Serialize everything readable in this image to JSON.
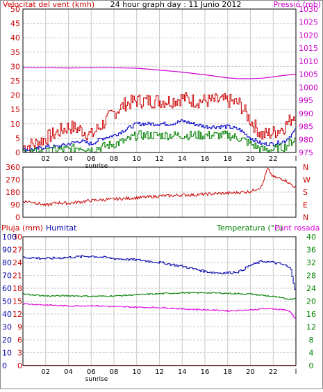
{
  "colors": {
    "background": "#ffffff",
    "grid": "#c8c8c8",
    "frame": "#000000",
    "wind": "#cc0000",
    "wind_avg": "#0000cc",
    "wind_min": "#008000",
    "pressure": "#cc00cc",
    "direction": "#cc0000",
    "rain": "#cc0000",
    "humidity": "#0000aa",
    "temperature": "#008000",
    "dewpoint": "#dd00dd",
    "title": "#000000"
  },
  "chart_data": [
    {
      "type": "line",
      "title": "24 hour graph day : 11 Junio 2012",
      "left_label": "Velocitat del vent (kmh)",
      "right_label": "Pressió (mb)",
      "x_ticks": [
        "02",
        "04",
        "06",
        "08",
        "10",
        "12",
        "14",
        "16",
        "18",
        "20",
        "22",
        "l"
      ],
      "sunrise_label": "sunrise",
      "sunrise_hour": 6.3,
      "xlim": [
        0,
        24
      ],
      "ylim_left": [
        0,
        50
      ],
      "yticks_left": [
        "0",
        "5",
        "10",
        "15",
        "20",
        "25",
        "30",
        "35",
        "40",
        "45",
        "50"
      ],
      "ylim_right": [
        975,
        1030
      ],
      "yticks_right": [
        "975",
        "980",
        "985",
        "990",
        "995",
        "1000",
        "1005",
        "1010",
        "1015",
        "1020",
        "1025",
        "1030"
      ],
      "series": [
        {
          "key": "wind_gust",
          "axis": "left",
          "hours": [
            0,
            1,
            2,
            3,
            4,
            5,
            6,
            7,
            8,
            9,
            10,
            11,
            12,
            13,
            14,
            15,
            16,
            17,
            18,
            19,
            20,
            21,
            22,
            23,
            24
          ],
          "values": [
            2,
            3,
            5,
            7,
            9,
            8,
            6,
            10,
            14,
            17,
            18,
            18,
            18,
            18,
            19,
            18,
            18,
            18,
            18,
            17,
            11,
            6,
            7,
            9,
            14
          ]
        },
        {
          "key": "wind_avg",
          "axis": "left",
          "hours": [
            0,
            1,
            2,
            3,
            4,
            5,
            6,
            7,
            8,
            9,
            10,
            11,
            12,
            13,
            14,
            15,
            16,
            17,
            18,
            19,
            20,
            21,
            22,
            23,
            24
          ],
          "values": [
            1,
            1,
            2,
            2,
            3,
            4,
            3,
            5,
            6,
            8,
            10,
            10,
            10,
            10,
            11,
            10,
            9,
            9,
            9,
            8,
            5,
            3,
            3,
            4,
            8
          ]
        },
        {
          "key": "wind_min",
          "axis": "left",
          "hours": [
            0,
            1,
            2,
            3,
            4,
            5,
            6,
            7,
            8,
            9,
            10,
            11,
            12,
            13,
            14,
            15,
            16,
            17,
            18,
            19,
            20,
            21,
            22,
            23,
            24
          ],
          "values": [
            0,
            0,
            0,
            1,
            1,
            2,
            1,
            2,
            3,
            4,
            6,
            6,
            6,
            6,
            6,
            6,
            6,
            6,
            6,
            5,
            3,
            1,
            1,
            2,
            5
          ]
        },
        {
          "key": "pressure",
          "axis": "right",
          "hours": [
            0,
            2,
            4,
            6,
            8,
            10,
            12,
            14,
            16,
            17,
            18,
            19,
            20,
            21,
            22,
            23,
            24
          ],
          "values": [
            1007.5,
            1007.5,
            1007.4,
            1007.5,
            1007.5,
            1007.3,
            1006.6,
            1005.8,
            1004.8,
            1004.2,
            1003.6,
            1003.3,
            1003.3,
            1003.5,
            1004.0,
            1004.6,
            1005.0
          ]
        }
      ]
    },
    {
      "type": "line",
      "left_ticks": [
        "0",
        "90",
        "180",
        "270",
        "360"
      ],
      "ylim": [
        0,
        360
      ],
      "compass": [
        "N",
        "W",
        "S",
        "E",
        "N"
      ],
      "series": [
        {
          "key": "direction",
          "hours": [
            0,
            1,
            2,
            3,
            4,
            5,
            6,
            7,
            8,
            9,
            10,
            11,
            12,
            13,
            14,
            15,
            16,
            17,
            18,
            19,
            20,
            21,
            21.5,
            22,
            23,
            24
          ],
          "values": [
            115,
            108,
            85,
            105,
            100,
            110,
            120,
            125,
            130,
            135,
            140,
            145,
            152,
            155,
            160,
            160,
            165,
            170,
            172,
            178,
            185,
            220,
            350,
            290,
            270,
            210
          ]
        }
      ]
    },
    {
      "type": "line",
      "left_label": "Pluja (mm)",
      "left2_label": "Humitat",
      "right_label": "Temperatura (°C)",
      "right2_label": "Punt rosada",
      "x_ticks": [
        "02",
        "04",
        "06",
        "08",
        "10",
        "12",
        "14",
        "16",
        "18",
        "20",
        "22",
        "l"
      ],
      "sunrise_label": "sunrise",
      "sunrise_hour": 6.3,
      "xlim": [
        0,
        24
      ],
      "ylim_rain": [
        0,
        30
      ],
      "yticks_rain": [
        "0",
        "3",
        "6",
        "9",
        "12",
        "15",
        "18",
        "21",
        "24",
        "27",
        "30"
      ],
      "ylim_humidity": [
        0,
        100
      ],
      "yticks_humidity": [
        "0",
        "10",
        "20",
        "30",
        "40",
        "50",
        "60",
        "70",
        "80",
        "90",
        "100"
      ],
      "ylim_right": [
        0,
        40
      ],
      "yticks_right": [
        "0",
        "4",
        "8",
        "12",
        "16",
        "20",
        "24",
        "28",
        "32",
        "36",
        "40"
      ],
      "series": [
        {
          "key": "rain",
          "axis": "rain",
          "hours": [
            0,
            24
          ],
          "values": [
            0,
            0
          ]
        },
        {
          "key": "humidity",
          "axis": "humidity",
          "hours": [
            0,
            2,
            4,
            6,
            8,
            10,
            12,
            14,
            16,
            17,
            18,
            19,
            20,
            21,
            22,
            23,
            23.5,
            24
          ],
          "values": [
            84,
            83,
            84,
            85,
            83,
            82,
            80,
            77,
            73,
            72,
            72,
            73,
            78,
            81,
            80,
            78,
            75,
            55
          ]
        },
        {
          "key": "temperature",
          "axis": "right",
          "hours": [
            0,
            2,
            4,
            6,
            8,
            10,
            12,
            14,
            16,
            18,
            20,
            22,
            23,
            23.5,
            24
          ],
          "values": [
            22.2,
            21.6,
            21.7,
            21.5,
            21.6,
            22.0,
            22.3,
            22.6,
            22.6,
            22.4,
            22.2,
            21.4,
            20.8,
            20.6,
            21.0
          ]
        },
        {
          "key": "dewpoint",
          "axis": "right",
          "hours": [
            0,
            2,
            4,
            6,
            8,
            10,
            12,
            14,
            16,
            18,
            20,
            21,
            22,
            23,
            23.5,
            24
          ],
          "values": [
            19.2,
            18.8,
            18.5,
            18.6,
            18.3,
            18.1,
            18.0,
            17.6,
            17.3,
            17.0,
            17.3,
            17.6,
            17.6,
            17.3,
            16.5,
            14.0
          ]
        }
      ]
    }
  ]
}
